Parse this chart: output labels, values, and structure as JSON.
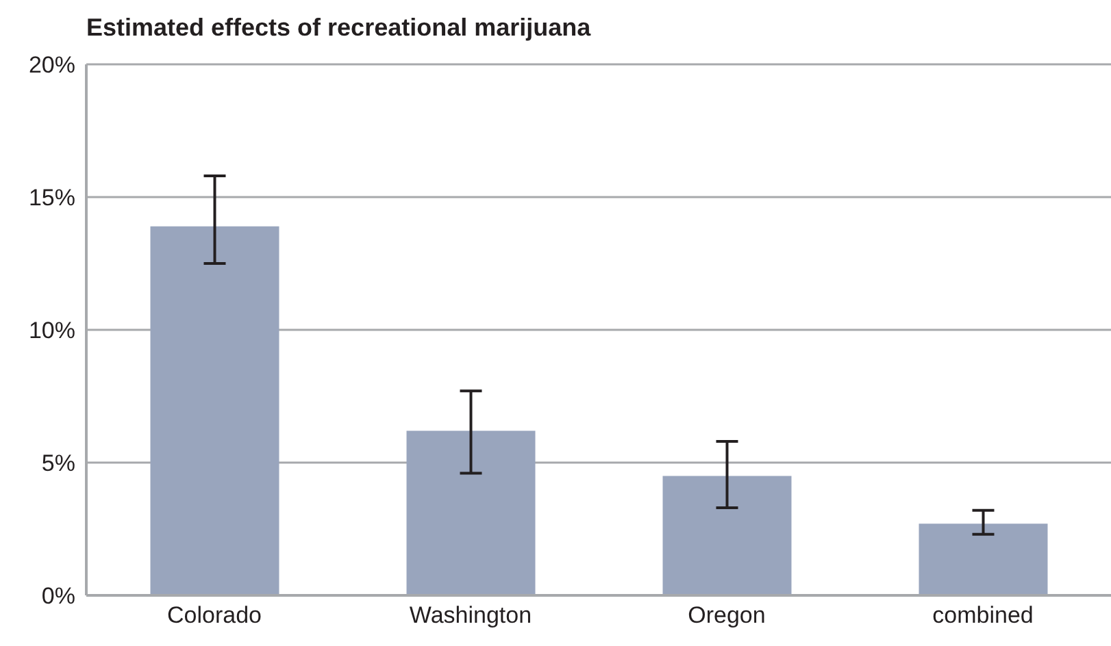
{
  "chart_data": {
    "type": "bar",
    "title": "Estimated effects of recreational marijuana",
    "categories": [
      "Colorado",
      "Washington",
      "Oregon",
      "combined"
    ],
    "values": [
      13.9,
      6.2,
      4.5,
      2.7
    ],
    "errors": [
      [
        12.5,
        15.8
      ],
      [
        4.6,
        7.7
      ],
      [
        3.3,
        5.8
      ],
      [
        2.3,
        3.2
      ]
    ],
    "color": "#99a5bd",
    "ylim": [
      0,
      20
    ],
    "yticks": [
      {
        "value": 0,
        "label": "0%"
      },
      {
        "value": 5,
        "label": "5%"
      },
      {
        "value": 10,
        "label": "10%"
      },
      {
        "value": 15,
        "label": "15%"
      },
      {
        "value": 20,
        "label": "20%"
      }
    ],
    "grid": "y"
  }
}
